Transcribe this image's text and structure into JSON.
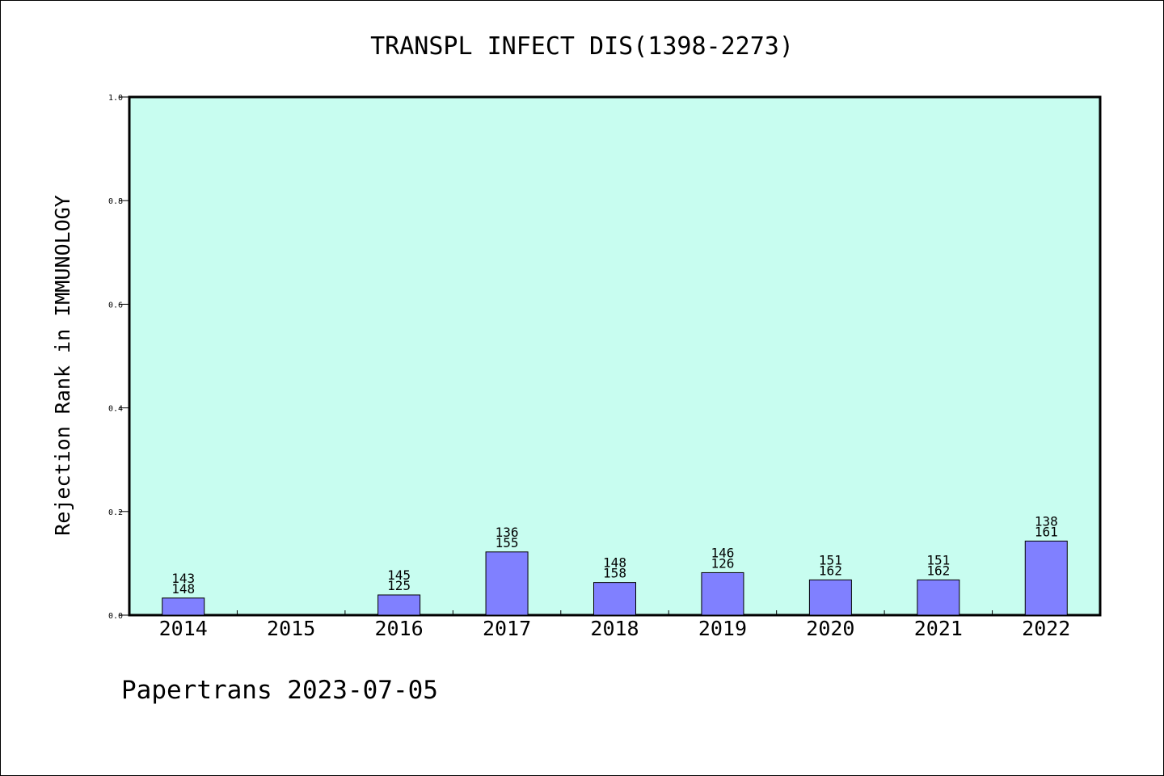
{
  "chart_data": {
    "type": "bar",
    "title": "TRANSPL INFECT DIS(1398-2273)",
    "ylabel": "Rejection Rank in IMMUNOLOGY",
    "xlabel": "",
    "ylim": [
      0,
      1.0
    ],
    "yticks": [
      0.0,
      0.2,
      0.4,
      0.6,
      0.8,
      1.0
    ],
    "ytick_labels": [
      "0.0",
      "0.2",
      "0.4",
      "0.6",
      "0.8",
      "1.0"
    ],
    "categories": [
      "2014",
      "2015",
      "2016",
      "2017",
      "2018",
      "2019",
      "2020",
      "2021",
      "2022"
    ],
    "values": [
      0.033,
      null,
      0.039,
      0.122,
      0.063,
      0.082,
      0.068,
      0.068,
      0.143
    ],
    "labels_top": [
      "143",
      "",
      "145",
      "136",
      "148",
      "146",
      "151",
      "151",
      "138"
    ],
    "labels_bottom": [
      "148",
      "",
      "125",
      "155",
      "158",
      "126",
      "162",
      "162",
      "161"
    ],
    "grid": false,
    "colors": {
      "plot_background": "#c8fdf0",
      "bar_fill": "#8080ff",
      "bar_stroke": "#000000",
      "axis": "#000000"
    }
  },
  "footer": "Papertrans 2023-07-05"
}
